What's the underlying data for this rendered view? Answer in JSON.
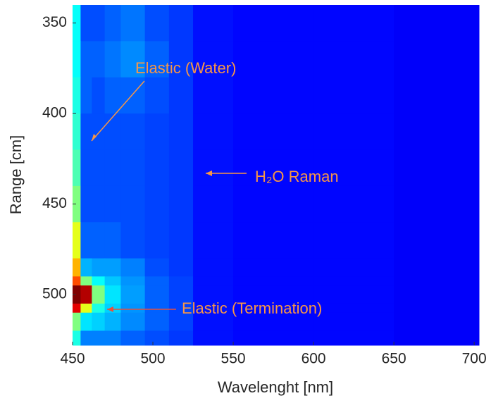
{
  "chart_data": {
    "type": "heatmap",
    "xlabel": "Wavelenght [nm]",
    "ylabel": "Range [cm]",
    "xlim": [
      450,
      703
    ],
    "ylim": [
      340,
      528
    ],
    "y_reversed": true,
    "xticks": [
      450,
      500,
      550,
      600,
      650,
      700
    ],
    "yticks": [
      350,
      400,
      450,
      500
    ],
    "colormap": "jet",
    "xbins": [
      450,
      455,
      462,
      470,
      480,
      495,
      510,
      525,
      550,
      600,
      650,
      703
    ],
    "ybins": [
      340,
      360,
      380,
      400,
      420,
      440,
      460,
      480,
      490,
      495,
      505,
      510,
      520,
      528
    ],
    "z": [
      [
        0.38,
        0.2,
        0.2,
        0.22,
        0.24,
        0.2,
        0.18,
        0.14,
        0.13,
        0.13,
        0.12
      ],
      [
        0.38,
        0.22,
        0.22,
        0.24,
        0.26,
        0.22,
        0.18,
        0.14,
        0.13,
        0.13,
        0.12
      ],
      [
        0.4,
        0.22,
        0.2,
        0.22,
        0.22,
        0.2,
        0.18,
        0.14,
        0.13,
        0.13,
        0.12
      ],
      [
        0.42,
        0.2,
        0.2,
        0.2,
        0.2,
        0.19,
        0.18,
        0.14,
        0.13,
        0.13,
        0.12
      ],
      [
        0.45,
        0.2,
        0.2,
        0.2,
        0.2,
        0.19,
        0.18,
        0.14,
        0.13,
        0.13,
        0.12
      ],
      [
        0.5,
        0.2,
        0.2,
        0.2,
        0.2,
        0.19,
        0.18,
        0.14,
        0.13,
        0.13,
        0.12
      ],
      [
        0.6,
        0.22,
        0.22,
        0.22,
        0.2,
        0.19,
        0.18,
        0.14,
        0.13,
        0.13,
        0.12
      ],
      [
        0.7,
        0.3,
        0.28,
        0.28,
        0.25,
        0.2,
        0.18,
        0.14,
        0.13,
        0.13,
        0.12
      ],
      [
        0.8,
        0.5,
        0.38,
        0.32,
        0.27,
        0.22,
        0.19,
        0.14,
        0.13,
        0.13,
        0.12
      ],
      [
        1.0,
        0.95,
        0.5,
        0.35,
        0.28,
        0.22,
        0.19,
        0.14,
        0.13,
        0.13,
        0.12
      ],
      [
        0.9,
        0.6,
        0.4,
        0.33,
        0.27,
        0.22,
        0.19,
        0.14,
        0.13,
        0.13,
        0.12
      ],
      [
        0.5,
        0.35,
        0.33,
        0.3,
        0.26,
        0.22,
        0.19,
        0.14,
        0.13,
        0.13,
        0.12
      ],
      [
        0.4,
        0.25,
        0.25,
        0.25,
        0.22,
        0.2,
        0.18,
        0.14,
        0.13,
        0.13,
        0.12
      ]
    ],
    "annotations": [
      "Elastic (Water)",
      "H₂O Raman",
      "Elastic (Termination)"
    ]
  }
}
